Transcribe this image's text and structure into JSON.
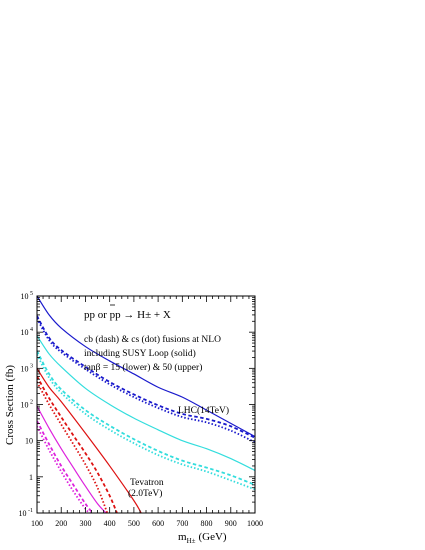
{
  "chart_data": {
    "type": "line",
    "title": "",
    "xlabel": "m",
    "xlabel_sub": "H±",
    "xlabel_unit": "(GeV)",
    "ylabel": "Cross Section (fb)",
    "xlim": [
      100,
      1000
    ],
    "ylim": [
      0.1,
      100000
    ],
    "yscale": "log",
    "x_ticks": [
      100,
      200,
      300,
      400,
      500,
      600,
      700,
      800,
      900,
      1000
    ],
    "y_ticks": [
      {
        "value": 0.1,
        "label": "10",
        "sup": "-1"
      },
      {
        "value": 1,
        "label": "1",
        "sup": ""
      },
      {
        "value": 10,
        "label": "10",
        "sup": ""
      },
      {
        "value": 100,
        "label": "10",
        "sup": "2"
      },
      {
        "value": 1000,
        "label": "10",
        "sup": "3"
      },
      {
        "value": 10000,
        "label": "10",
        "sup": "4"
      },
      {
        "value": 100000,
        "label": "10",
        "sup": "5"
      }
    ],
    "grid": false,
    "annotations": {
      "process": "pp or pp → H± + X",
      "line2": "cb (dash) & cs (dot) fusions at NLO",
      "line3": "including SUSY Loop (solid)",
      "line4": "tanβ = 15 (lower) & 50 (upper)",
      "lhc_label": "LHC(14TeV)",
      "tevatron_label": "Tevatron",
      "tevatron_energy": "(2.0TeV)"
    },
    "colors": {
      "lhc_upper": "#1a1acc",
      "lhc_lower": "#33dddd",
      "tev_upper": "#dd1111",
      "tev_lower": "#dd22dd"
    },
    "series": [
      {
        "group": "LHC",
        "tanbeta": 50,
        "style": "solid",
        "color_key": "lhc_upper",
        "x": [
          100,
          150,
          200,
          300,
          400,
          500,
          600,
          700,
          800,
          900,
          1000
        ],
        "y": [
          100000,
          30000,
          13000,
          4000,
          1600,
          700,
          300,
          160,
          70,
          30,
          13
        ]
      },
      {
        "group": "LHC",
        "tanbeta": 50,
        "style": "dash",
        "color_key": "lhc_upper",
        "x": [
          100,
          150,
          200,
          300,
          400,
          500,
          600,
          700,
          800,
          900,
          1000
        ],
        "y": [
          28000,
          7000,
          3200,
          1100,
          420,
          190,
          95,
          55,
          40,
          25,
          12
        ]
      },
      {
        "group": "LHC",
        "tanbeta": 50,
        "style": "dot",
        "color_key": "lhc_upper",
        "x": [
          100,
          150,
          200,
          300,
          400,
          500,
          600,
          700,
          800,
          900,
          1000
        ],
        "y": [
          24000,
          6000,
          2800,
          950,
          360,
          160,
          80,
          45,
          32,
          19,
          9
        ]
      },
      {
        "group": "LHC",
        "tanbeta": 15,
        "style": "solid",
        "color_key": "lhc_lower",
        "x": [
          100,
          150,
          200,
          300,
          400,
          500,
          600,
          700,
          800,
          900,
          1000
        ],
        "y": [
          8000,
          2500,
          1100,
          280,
          100,
          42,
          20,
          10,
          6,
          3.2,
          1.5
        ]
      },
      {
        "group": "LHC",
        "tanbeta": 15,
        "style": "dash",
        "color_key": "lhc_lower",
        "x": [
          100,
          150,
          200,
          300,
          400,
          500,
          600,
          700,
          800,
          900,
          1000
        ],
        "y": [
          3000,
          700,
          260,
          70,
          26,
          11,
          5.2,
          2.8,
          1.8,
          1.1,
          0.6
        ]
      },
      {
        "group": "LHC",
        "tanbeta": 15,
        "style": "dot",
        "color_key": "lhc_lower",
        "x": [
          100,
          150,
          200,
          300,
          400,
          500,
          600,
          700,
          800,
          900,
          1000
        ],
        "y": [
          2400,
          550,
          210,
          55,
          20,
          8.5,
          4,
          2.2,
          1.4,
          0.8,
          0.45
        ]
      },
      {
        "group": "Tevatron",
        "tanbeta": 50,
        "style": "solid",
        "color_key": "tev_upper",
        "x": [
          100,
          150,
          200,
          300,
          400,
          500,
          530
        ],
        "y": [
          1000,
          300,
          120,
          16,
          2.0,
          0.22,
          0.1
        ]
      },
      {
        "group": "Tevatron",
        "tanbeta": 50,
        "style": "dash",
        "color_key": "tev_upper",
        "x": [
          100,
          150,
          200,
          250,
          300,
          350,
          400,
          430
        ],
        "y": [
          600,
          150,
          45,
          14,
          4.5,
          1.3,
          0.3,
          0.1
        ]
      },
      {
        "group": "Tevatron",
        "tanbeta": 50,
        "style": "dot",
        "color_key": "tev_upper",
        "x": [
          100,
          150,
          200,
          250,
          300,
          350,
          390
        ],
        "y": [
          420,
          100,
          28,
          8,
          2.2,
          0.5,
          0.1
        ]
      },
      {
        "group": "Tevatron",
        "tanbeta": 15,
        "style": "solid",
        "color_key": "tev_lower",
        "x": [
          100,
          150,
          200,
          250,
          300,
          350,
          385
        ],
        "y": [
          90,
          22,
          6,
          1.8,
          0.55,
          0.18,
          0.1
        ]
      },
      {
        "group": "Tevatron",
        "tanbeta": 15,
        "style": "dash",
        "color_key": "tev_lower",
        "x": [
          100,
          150,
          200,
          250,
          300,
          330
        ],
        "y": [
          35,
          8,
          2.0,
          0.6,
          0.18,
          0.1
        ]
      },
      {
        "group": "Tevatron",
        "tanbeta": 15,
        "style": "dot",
        "color_key": "tev_lower",
        "x": [
          100,
          150,
          200,
          250,
          300,
          320
        ],
        "y": [
          25,
          5.5,
          1.4,
          0.4,
          0.13,
          0.1
        ]
      }
    ]
  }
}
